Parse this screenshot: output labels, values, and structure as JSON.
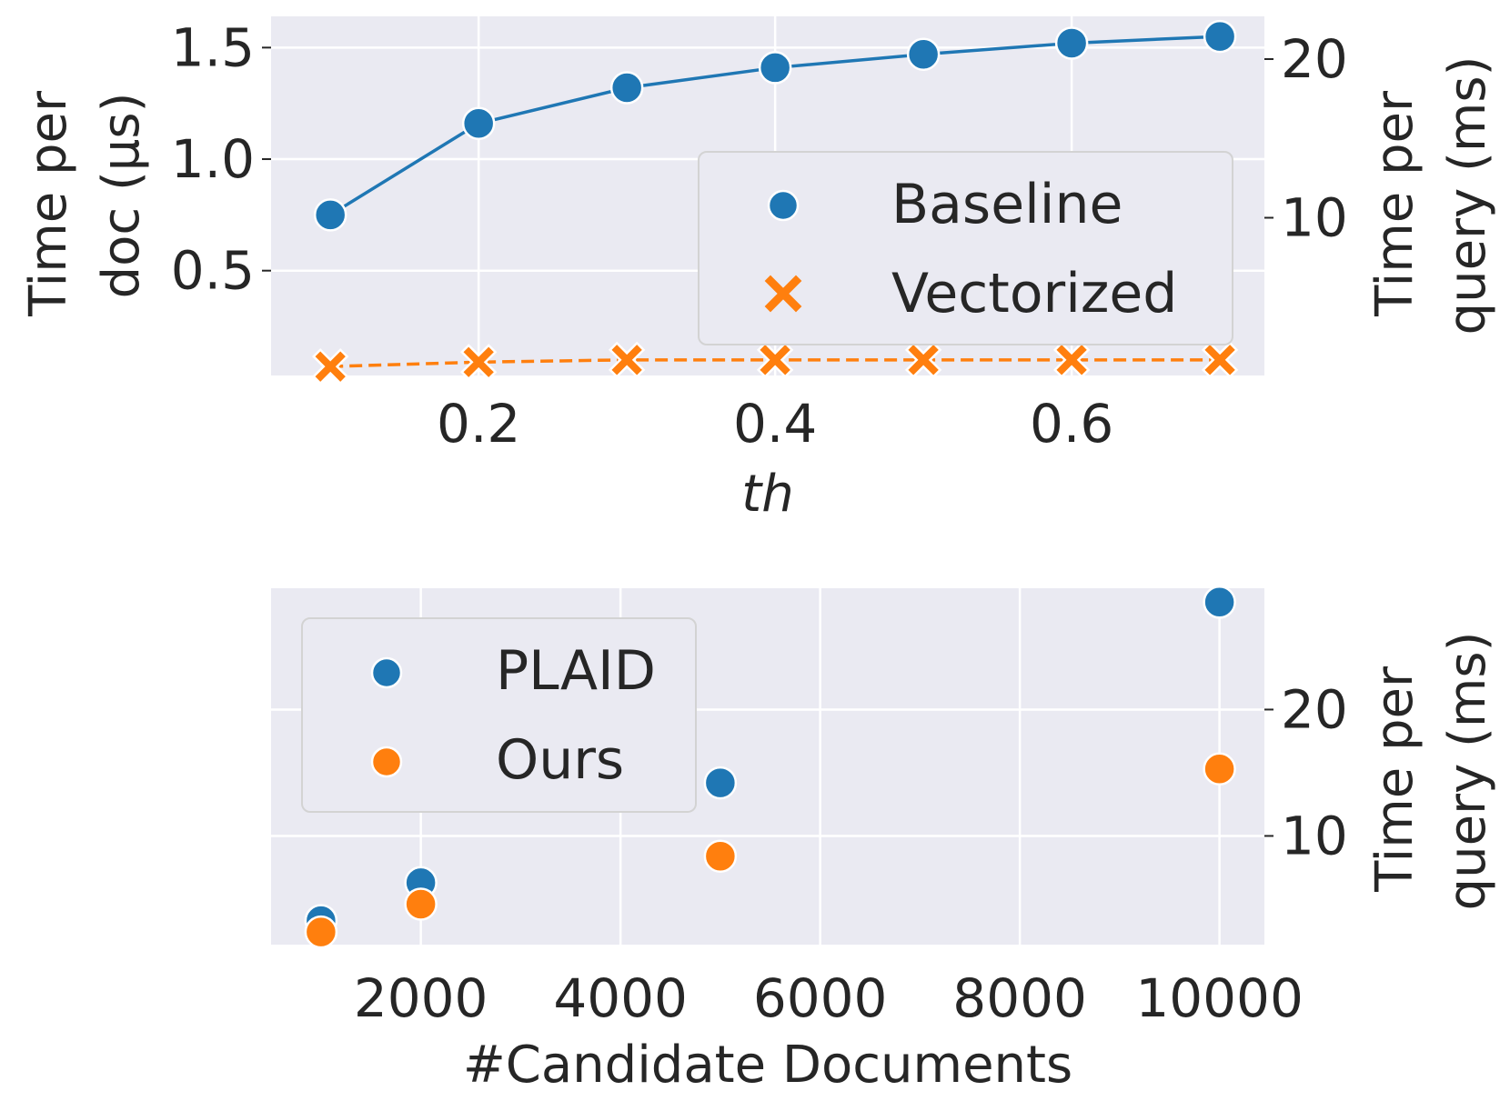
{
  "chart_data": [
    {
      "type": "line",
      "xlabel": "th",
      "ylabel_left": "Time per doc (μs)",
      "ylabel_left_lines": [
        "Time per",
        "doc (μs)"
      ],
      "ylabel_right": "Time per query (ms)",
      "ylabel_right_lines": [
        "Time per",
        "query (ms)"
      ],
      "x": [
        0.1,
        0.2,
        0.3,
        0.4,
        0.5,
        0.6,
        0.7
      ],
      "x_ticks": [
        "0.2",
        "0.4",
        "0.6"
      ],
      "y_left_ticks": [
        "0.5",
        "1.0",
        "1.5"
      ],
      "y_right_ticks": [
        "10",
        "20"
      ],
      "xlim": [
        0.06,
        0.73
      ],
      "ylim": [
        0.03,
        1.64
      ],
      "series": [
        {
          "name": "Baseline",
          "values": [
            0.75,
            1.16,
            1.32,
            1.41,
            1.47,
            1.52,
            1.55
          ],
          "color": "#1f77b4",
          "marker": "circle",
          "linestyle": "solid"
        },
        {
          "name": "Vectorized",
          "values": [
            0.07,
            0.09,
            0.1,
            0.1,
            0.1,
            0.1,
            0.1
          ],
          "color": "#ff7f0e",
          "marker": "x",
          "linestyle": "dashed"
        }
      ],
      "legend": "center-right",
      "grid": true
    },
    {
      "type": "scatter",
      "xlabel": "#Candidate Documents",
      "ylabel_right": "Time per query (ms)",
      "ylabel_right_lines": [
        "Time per",
        "query (ms)"
      ],
      "x": [
        1000,
        2000,
        5000,
        10000
      ],
      "x_ticks": [
        "2000",
        "4000",
        "6000",
        "8000",
        "10000"
      ],
      "y_right_ticks": [
        "10",
        "20"
      ],
      "xlim": [
        500,
        10450
      ],
      "ylim": [
        1.4,
        29.6
      ],
      "series": [
        {
          "name": "PLAID",
          "values": [
            3.3,
            6.3,
            14.2,
            28.5
          ],
          "color": "#1f77b4",
          "marker": "circle"
        },
        {
          "name": "Ours",
          "values": [
            2.4,
            4.6,
            8.4,
            15.3
          ],
          "color": "#ff7f0e",
          "marker": "circle"
        }
      ],
      "legend": "top-left",
      "grid": true
    }
  ]
}
